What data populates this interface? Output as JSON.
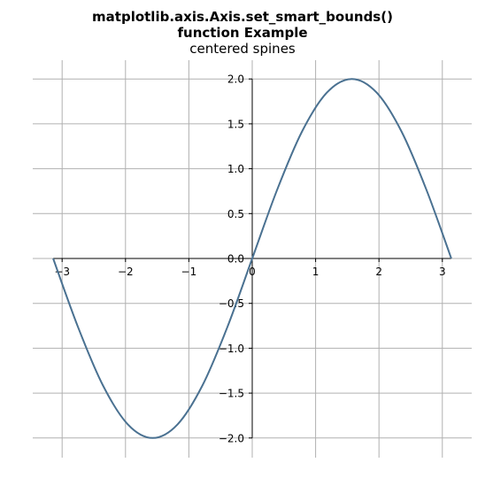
{
  "title": {
    "line1": "matplotlib.axis.Axis.set_smart_bounds()",
    "line2": "function Example"
  },
  "subtitle": "centered spines",
  "colors": {
    "line": "#4a7191",
    "grid": "#b0b0b0",
    "spine": "#000000",
    "background": "#ffffff"
  },
  "chart_data": {
    "type": "line",
    "title": "matplotlib.axis.Axis.set_smart_bounds() function Example",
    "subtitle": "centered spines",
    "xlabel": "",
    "ylabel": "",
    "function": "y = 2*sin(x)",
    "xlim": [
      -3.14159,
      3.14159
    ],
    "ylim": [
      -2.0,
      2.0
    ],
    "x_ticks": [
      -3,
      -2,
      -1,
      0,
      1,
      2,
      3
    ],
    "x_tick_labels": [
      "−3",
      "−2",
      "−1",
      "0",
      "1",
      "2",
      "3"
    ],
    "y_ticks": [
      2.0,
      1.5,
      1.0,
      0.5,
      0.0,
      -0.5,
      -1.0,
      -1.5,
      -2.0
    ],
    "y_tick_labels": [
      "2.0",
      "1.5",
      "1.0",
      "0.5",
      "0.0",
      "−0.5",
      "−1.0",
      "−1.5",
      "−2.0"
    ],
    "grid": true,
    "spines": "centered",
    "series": [
      {
        "x": [
          -3.1416,
          -2.7489,
          -2.3562,
          -1.9635,
          -1.5708,
          -1.1781,
          -0.7854,
          -0.3927,
          0.0,
          0.3927,
          0.7854,
          1.1781,
          1.5708,
          1.9635,
          2.3562,
          2.7489,
          3.1416
        ],
        "values": [
          0.0,
          -0.765,
          -1.414,
          -1.848,
          -2.0,
          -1.848,
          -1.414,
          -0.765,
          0.0,
          0.765,
          1.414,
          1.848,
          2.0,
          1.848,
          1.414,
          0.765,
          0.0
        ]
      }
    ]
  }
}
